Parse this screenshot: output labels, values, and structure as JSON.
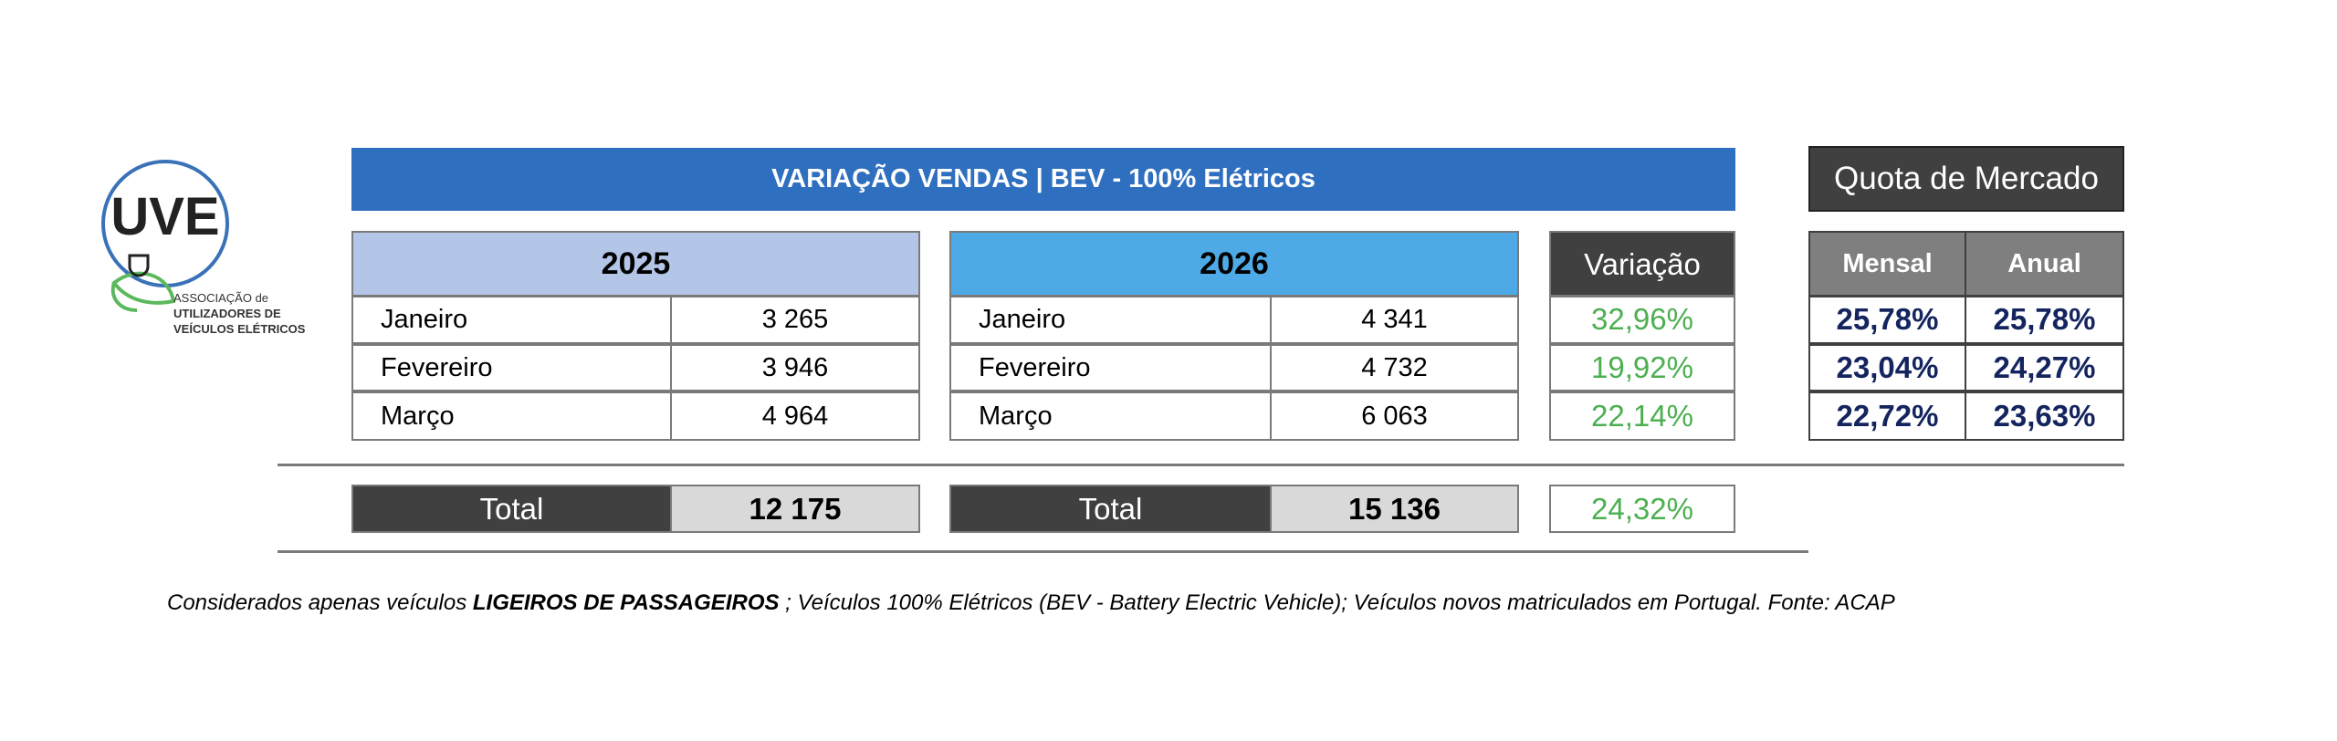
{
  "logo": {
    "acronym": "UVE",
    "lines": [
      "ASSOCIAÇÃO de",
      "UTILIZADORES DE",
      "VEÍCULOS ELÉTRICOS"
    ]
  },
  "title": "VARIAÇÃO VENDAS | BEV - 100% Elétricos",
  "table_2025": {
    "year": "2025",
    "rows": [
      [
        "Janeiro",
        "3 265"
      ],
      [
        "Fevereiro",
        "3 946"
      ],
      [
        "Março",
        "4 964"
      ]
    ],
    "total_label": "Total",
    "total": "12 175"
  },
  "table_2026": {
    "year": "2026",
    "rows": [
      [
        "Janeiro",
        "4 341"
      ],
      [
        "Fevereiro",
        "4 732"
      ],
      [
        "Março",
        "6 063"
      ]
    ],
    "total_label": "Total",
    "total": "15 136"
  },
  "variation": {
    "header": "Variação",
    "values": [
      "32,96%",
      "19,92%",
      "22,14%"
    ],
    "total": "24,32%"
  },
  "quota": {
    "title": "Quota de Mercado",
    "headers": [
      "Mensal",
      "Anual"
    ],
    "rows": [
      [
        "25,78%",
        "25,78%"
      ],
      [
        "23,04%",
        "24,27%"
      ],
      [
        "22,72%",
        "23,63%"
      ]
    ]
  },
  "footnote": {
    "prefix": "Considerados apenas veículos ",
    "bold": "LIGEIROS DE PASSAGEIROS",
    "suffix": " ; Veículos 100% Elétricos (BEV - Battery Electric Vehicle); Veículos novos matriculados em Portugal. Fonte: ACAP"
  }
}
